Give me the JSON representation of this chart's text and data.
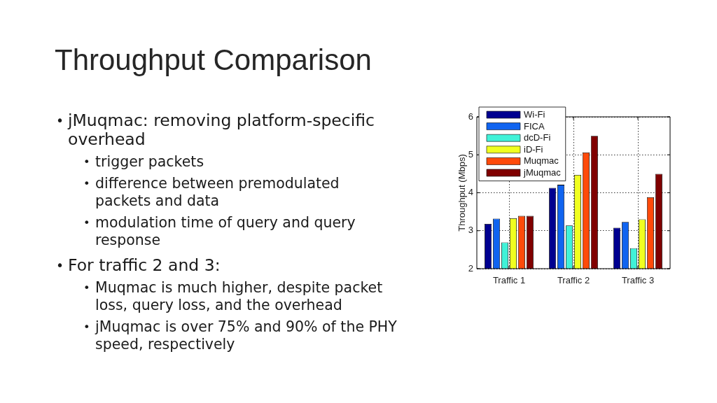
{
  "chart_data": {
    "type": "bar",
    "title": "Throughput Comparison",
    "ylabel": "Throughput (Mbps)",
    "categories": [
      "Traffic 1",
      "Traffic 2",
      "Traffic 3"
    ],
    "series": [
      {
        "name": "Wi-Fi",
        "color": "#000090",
        "values": [
          3.18,
          4.13,
          3.08
        ]
      },
      {
        "name": "FICA",
        "color": "#1064f0",
        "values": [
          3.32,
          4.21,
          3.23
        ]
      },
      {
        "name": "dcD-Fi",
        "color": "#40f2d8",
        "values": [
          2.69,
          3.14,
          2.54
        ]
      },
      {
        "name": "iD-Fi",
        "color": "#f0ff20",
        "values": [
          3.33,
          4.47,
          3.3
        ]
      },
      {
        "name": "Muqmac",
        "color": "#ff4a0a",
        "values": [
          3.39,
          5.06,
          3.88
        ]
      },
      {
        "name": "jMuqmac",
        "color": "#800000",
        "values": [
          3.39,
          5.5,
          4.5
        ]
      }
    ],
    "ylim": [
      2,
      6
    ],
    "yticks": [
      2,
      3,
      4,
      5,
      6
    ],
    "grid": true,
    "legend": "top left",
    "annotations": [
      "• jMuqmac: removing platform-specific overhead",
      "• trigger packets",
      "• difference between premodulated packets and data",
      "• modulation time of query and query response",
      "• For traffic 2 and 3:",
      "• Muqmac is much higher, despite packet loss, query loss, and the overhead",
      "• jMuqmac is over 75% and 90% of the PHY speed, respectively"
    ]
  }
}
